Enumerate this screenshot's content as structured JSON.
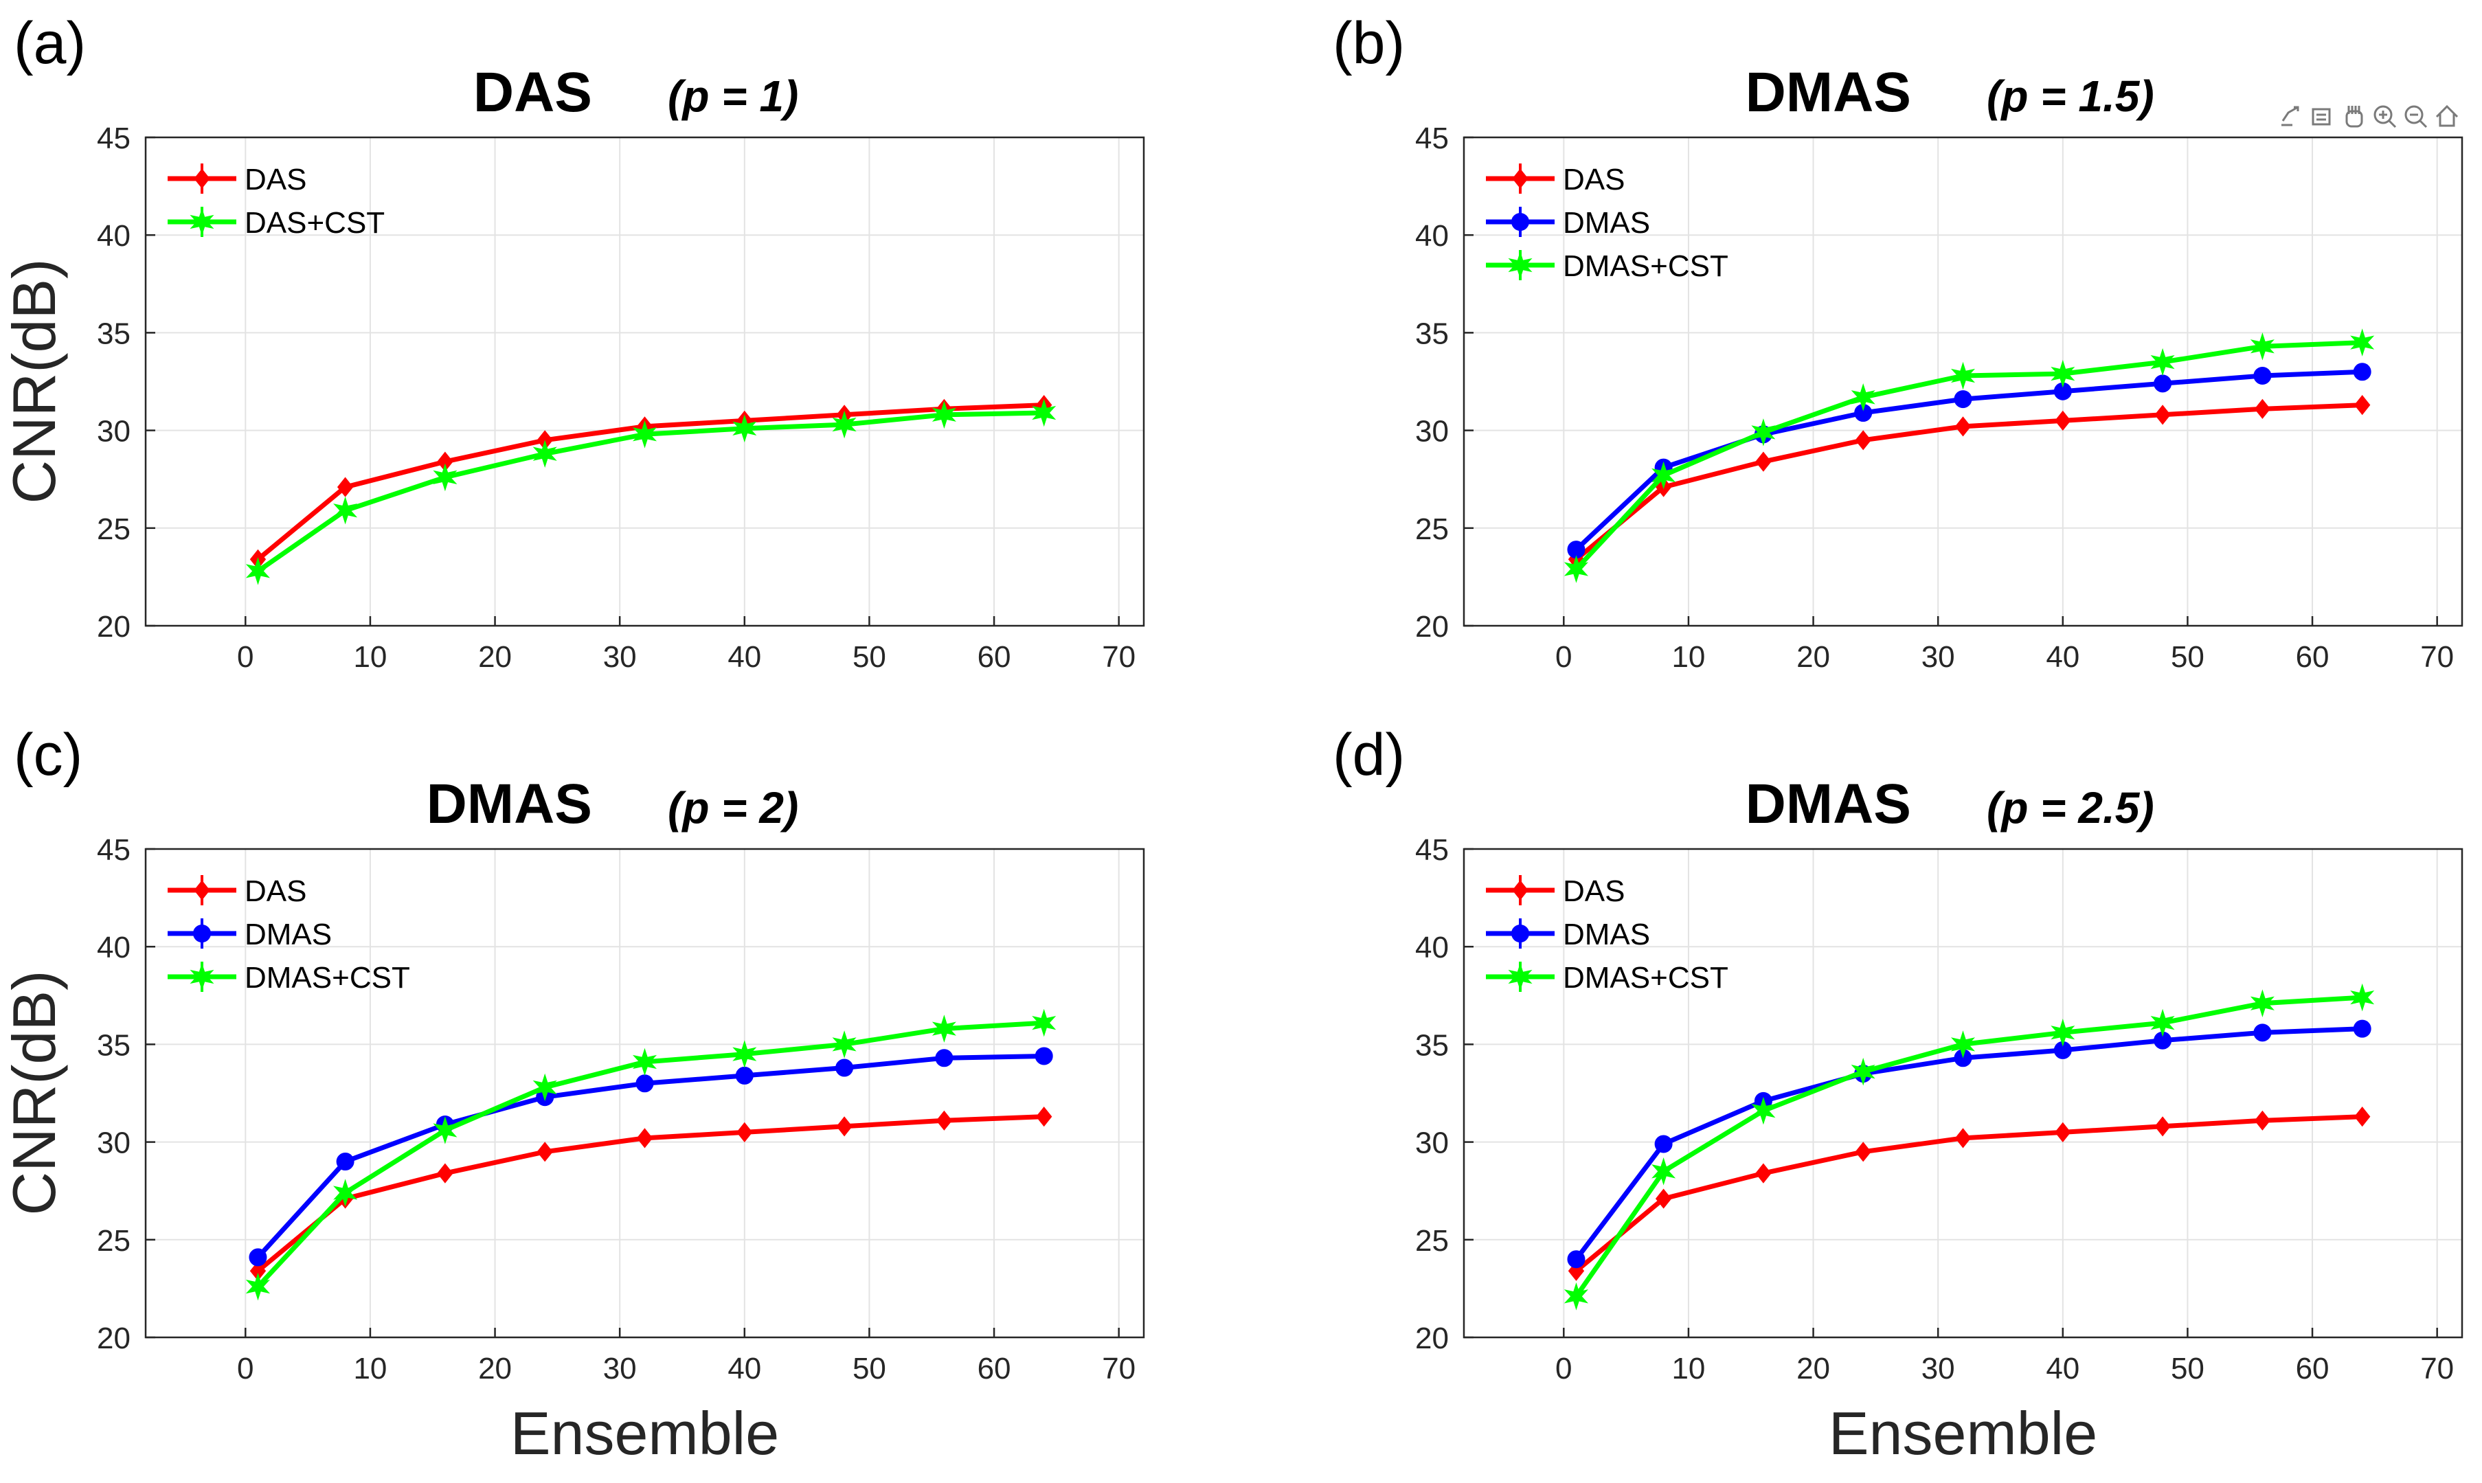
{
  "figure": {
    "ylabel": "CNR(dB)",
    "xlabel": "Ensemble",
    "toolbar_icons": [
      "export-icon",
      "brush-icon",
      "pan-icon",
      "zoom-in-icon",
      "zoom-out-icon",
      "home-icon"
    ]
  },
  "colors": {
    "DAS": "#ff0000",
    "DMAS": "#0000ff",
    "CST": "#00ff00",
    "axis": "#262626",
    "grid": "#e3e3e3"
  },
  "chart_data": [
    {
      "type": "line",
      "panel": "(a)",
      "title": "DAS",
      "subtitle": "(p = 1)",
      "xlabel": "",
      "ylabel": "CNR(dB)",
      "xlim": [
        -8,
        72
      ],
      "ylim": [
        20,
        45
      ],
      "xticks": [
        0,
        10,
        20,
        30,
        40,
        50,
        60,
        70
      ],
      "yticks": [
        20,
        25,
        30,
        35,
        40,
        45
      ],
      "grid": true,
      "legend": "top-left",
      "x": [
        1,
        8,
        16,
        24,
        32,
        40,
        48,
        56,
        64
      ],
      "series": [
        {
          "name": "DAS",
          "marker": "diamond",
          "color": "#ff0000",
          "values": [
            23.4,
            27.1,
            28.4,
            29.5,
            30.2,
            30.5,
            30.8,
            31.1,
            31.3
          ]
        },
        {
          "name": "DAS+CST",
          "marker": "star",
          "color": "#00ff00",
          "values": [
            22.8,
            25.9,
            27.6,
            28.8,
            29.8,
            30.1,
            30.3,
            30.8,
            30.9
          ]
        }
      ]
    },
    {
      "type": "line",
      "panel": "(b)",
      "title": "DMAS",
      "subtitle": "(p = 1.5)",
      "xlabel": "",
      "ylabel": "",
      "xlim": [
        -8,
        72
      ],
      "ylim": [
        20,
        45
      ],
      "xticks": [
        0,
        10,
        20,
        30,
        40,
        50,
        60,
        70
      ],
      "yticks": [
        20,
        25,
        30,
        35,
        40,
        45
      ],
      "grid": true,
      "legend": "top-left",
      "x": [
        1,
        8,
        16,
        24,
        32,
        40,
        48,
        56,
        64
      ],
      "series": [
        {
          "name": "DAS",
          "marker": "diamond",
          "color": "#ff0000",
          "values": [
            23.4,
            27.1,
            28.4,
            29.5,
            30.2,
            30.5,
            30.8,
            31.1,
            31.3
          ]
        },
        {
          "name": "DMAS",
          "marker": "circle",
          "color": "#0000ff",
          "values": [
            23.9,
            28.1,
            29.8,
            30.9,
            31.6,
            32.0,
            32.4,
            32.8,
            33.0
          ]
        },
        {
          "name": "DMAS+CST",
          "marker": "star",
          "color": "#00ff00",
          "values": [
            22.9,
            27.7,
            29.9,
            31.7,
            32.8,
            32.9,
            33.5,
            34.3,
            34.5
          ]
        }
      ]
    },
    {
      "type": "line",
      "panel": "(c)",
      "title": "DMAS",
      "subtitle": "(p = 2)",
      "xlabel": "Ensemble",
      "ylabel": "CNR(dB)",
      "xlim": [
        -8,
        72
      ],
      "ylim": [
        20,
        45
      ],
      "xticks": [
        0,
        10,
        20,
        30,
        40,
        50,
        60,
        70
      ],
      "yticks": [
        20,
        25,
        30,
        35,
        40,
        45
      ],
      "grid": true,
      "legend": "top-left",
      "x": [
        1,
        8,
        16,
        24,
        32,
        40,
        48,
        56,
        64
      ],
      "series": [
        {
          "name": "DAS",
          "marker": "diamond",
          "color": "#ff0000",
          "values": [
            23.4,
            27.1,
            28.4,
            29.5,
            30.2,
            30.5,
            30.8,
            31.1,
            31.3
          ]
        },
        {
          "name": "DMAS",
          "marker": "circle",
          "color": "#0000ff",
          "values": [
            24.1,
            29.0,
            30.9,
            32.3,
            33.0,
            33.4,
            33.8,
            34.3,
            34.4
          ]
        },
        {
          "name": "DMAS+CST",
          "marker": "star",
          "color": "#00ff00",
          "values": [
            22.6,
            27.4,
            30.6,
            32.8,
            34.1,
            34.5,
            35.0,
            35.8,
            36.1
          ]
        }
      ]
    },
    {
      "type": "line",
      "panel": "(d)",
      "title": "DMAS",
      "subtitle": "(p = 2.5)",
      "xlabel": "Ensemble",
      "ylabel": "",
      "xlim": [
        -8,
        72
      ],
      "ylim": [
        20,
        45
      ],
      "xticks": [
        0,
        10,
        20,
        30,
        40,
        50,
        60,
        70
      ],
      "yticks": [
        20,
        25,
        30,
        35,
        40,
        45
      ],
      "grid": true,
      "legend": "top-left",
      "x": [
        1,
        8,
        16,
        24,
        32,
        40,
        48,
        56,
        64
      ],
      "series": [
        {
          "name": "DAS",
          "marker": "diamond",
          "color": "#ff0000",
          "values": [
            23.4,
            27.1,
            28.4,
            29.5,
            30.2,
            30.5,
            30.8,
            31.1,
            31.3
          ]
        },
        {
          "name": "DMAS",
          "marker": "circle",
          "color": "#0000ff",
          "values": [
            24.0,
            29.9,
            32.1,
            33.5,
            34.3,
            34.7,
            35.2,
            35.6,
            35.8
          ]
        },
        {
          "name": "DMAS+CST",
          "marker": "star",
          "color": "#00ff00",
          "values": [
            22.1,
            28.5,
            31.6,
            33.6,
            35.0,
            35.6,
            36.1,
            37.1,
            37.4
          ]
        }
      ]
    }
  ]
}
